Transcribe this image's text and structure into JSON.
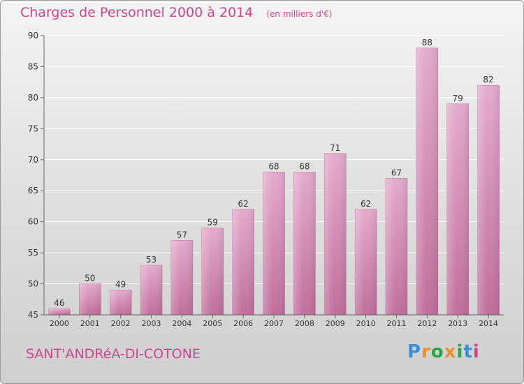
{
  "header": {
    "title": "Charges de Personnel 2000 à 2014",
    "subtitle": "(en milliers d'€)"
  },
  "footer": {
    "location": "SANT'ANDRéA-DI-COTONE",
    "logo_text": "Proxiti",
    "logo_colors": [
      "#3b8fd6",
      "#e8912c",
      "#2fa34a",
      "#e8912c",
      "#2fa34a",
      "#3b8fd6",
      "#d2438f"
    ]
  },
  "colors": {
    "title": "#d2438f",
    "bar_top": "#e4aacb",
    "bar_bottom": "#bf6e9a",
    "axis": "#666666"
  },
  "chart_data": {
    "type": "bar",
    "title": "Charges de Personnel 2000 à 2014",
    "subtitle": "(en milliers d'€)",
    "categories": [
      "2000",
      "2001",
      "2002",
      "2003",
      "2004",
      "2005",
      "2006",
      "2007",
      "2008",
      "2009",
      "2010",
      "2011",
      "2012",
      "2013",
      "2014"
    ],
    "values": [
      46,
      50,
      49,
      53,
      57,
      59,
      62,
      68,
      68,
      71,
      62,
      67,
      88,
      79,
      82
    ],
    "ylim": [
      45,
      90
    ],
    "yticks": [
      45,
      50,
      55,
      60,
      65,
      70,
      75,
      80,
      85,
      90
    ],
    "grid": true,
    "data_labels": true
  }
}
